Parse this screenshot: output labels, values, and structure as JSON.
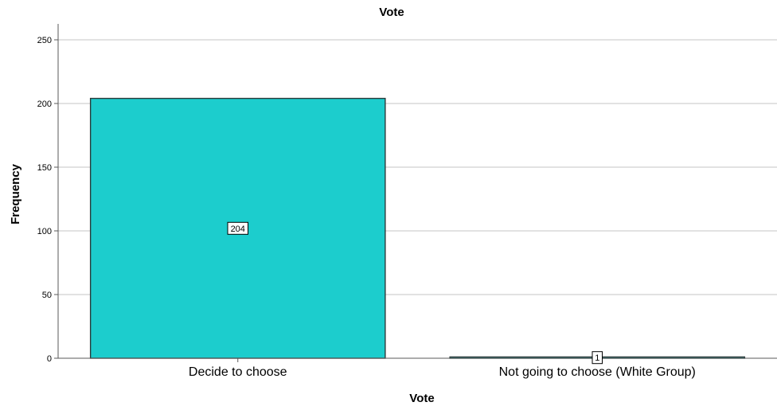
{
  "chart_data": {
    "type": "bar",
    "title": "Vote",
    "xlabel": "Vote",
    "ylabel": "Frequency",
    "categories": [
      "Decide to choose",
      "Not going to choose (White Group)"
    ],
    "values": [
      204,
      1
    ],
    "data_labels": [
      "204",
      "1"
    ],
    "ylim": [
      0,
      262.5
    ],
    "yticks": [
      0,
      50,
      100,
      150,
      200,
      250
    ],
    "ytick_labels": [
      "0",
      "50",
      "100",
      "150",
      "200",
      "250"
    ],
    "grid": true,
    "legend": "none",
    "colors": {
      "bar_fill": "#1ccdcd",
      "bar_stroke": "#2b3a3a",
      "gridline": "#d0d0d0",
      "axis": "#5a5a5a"
    }
  }
}
